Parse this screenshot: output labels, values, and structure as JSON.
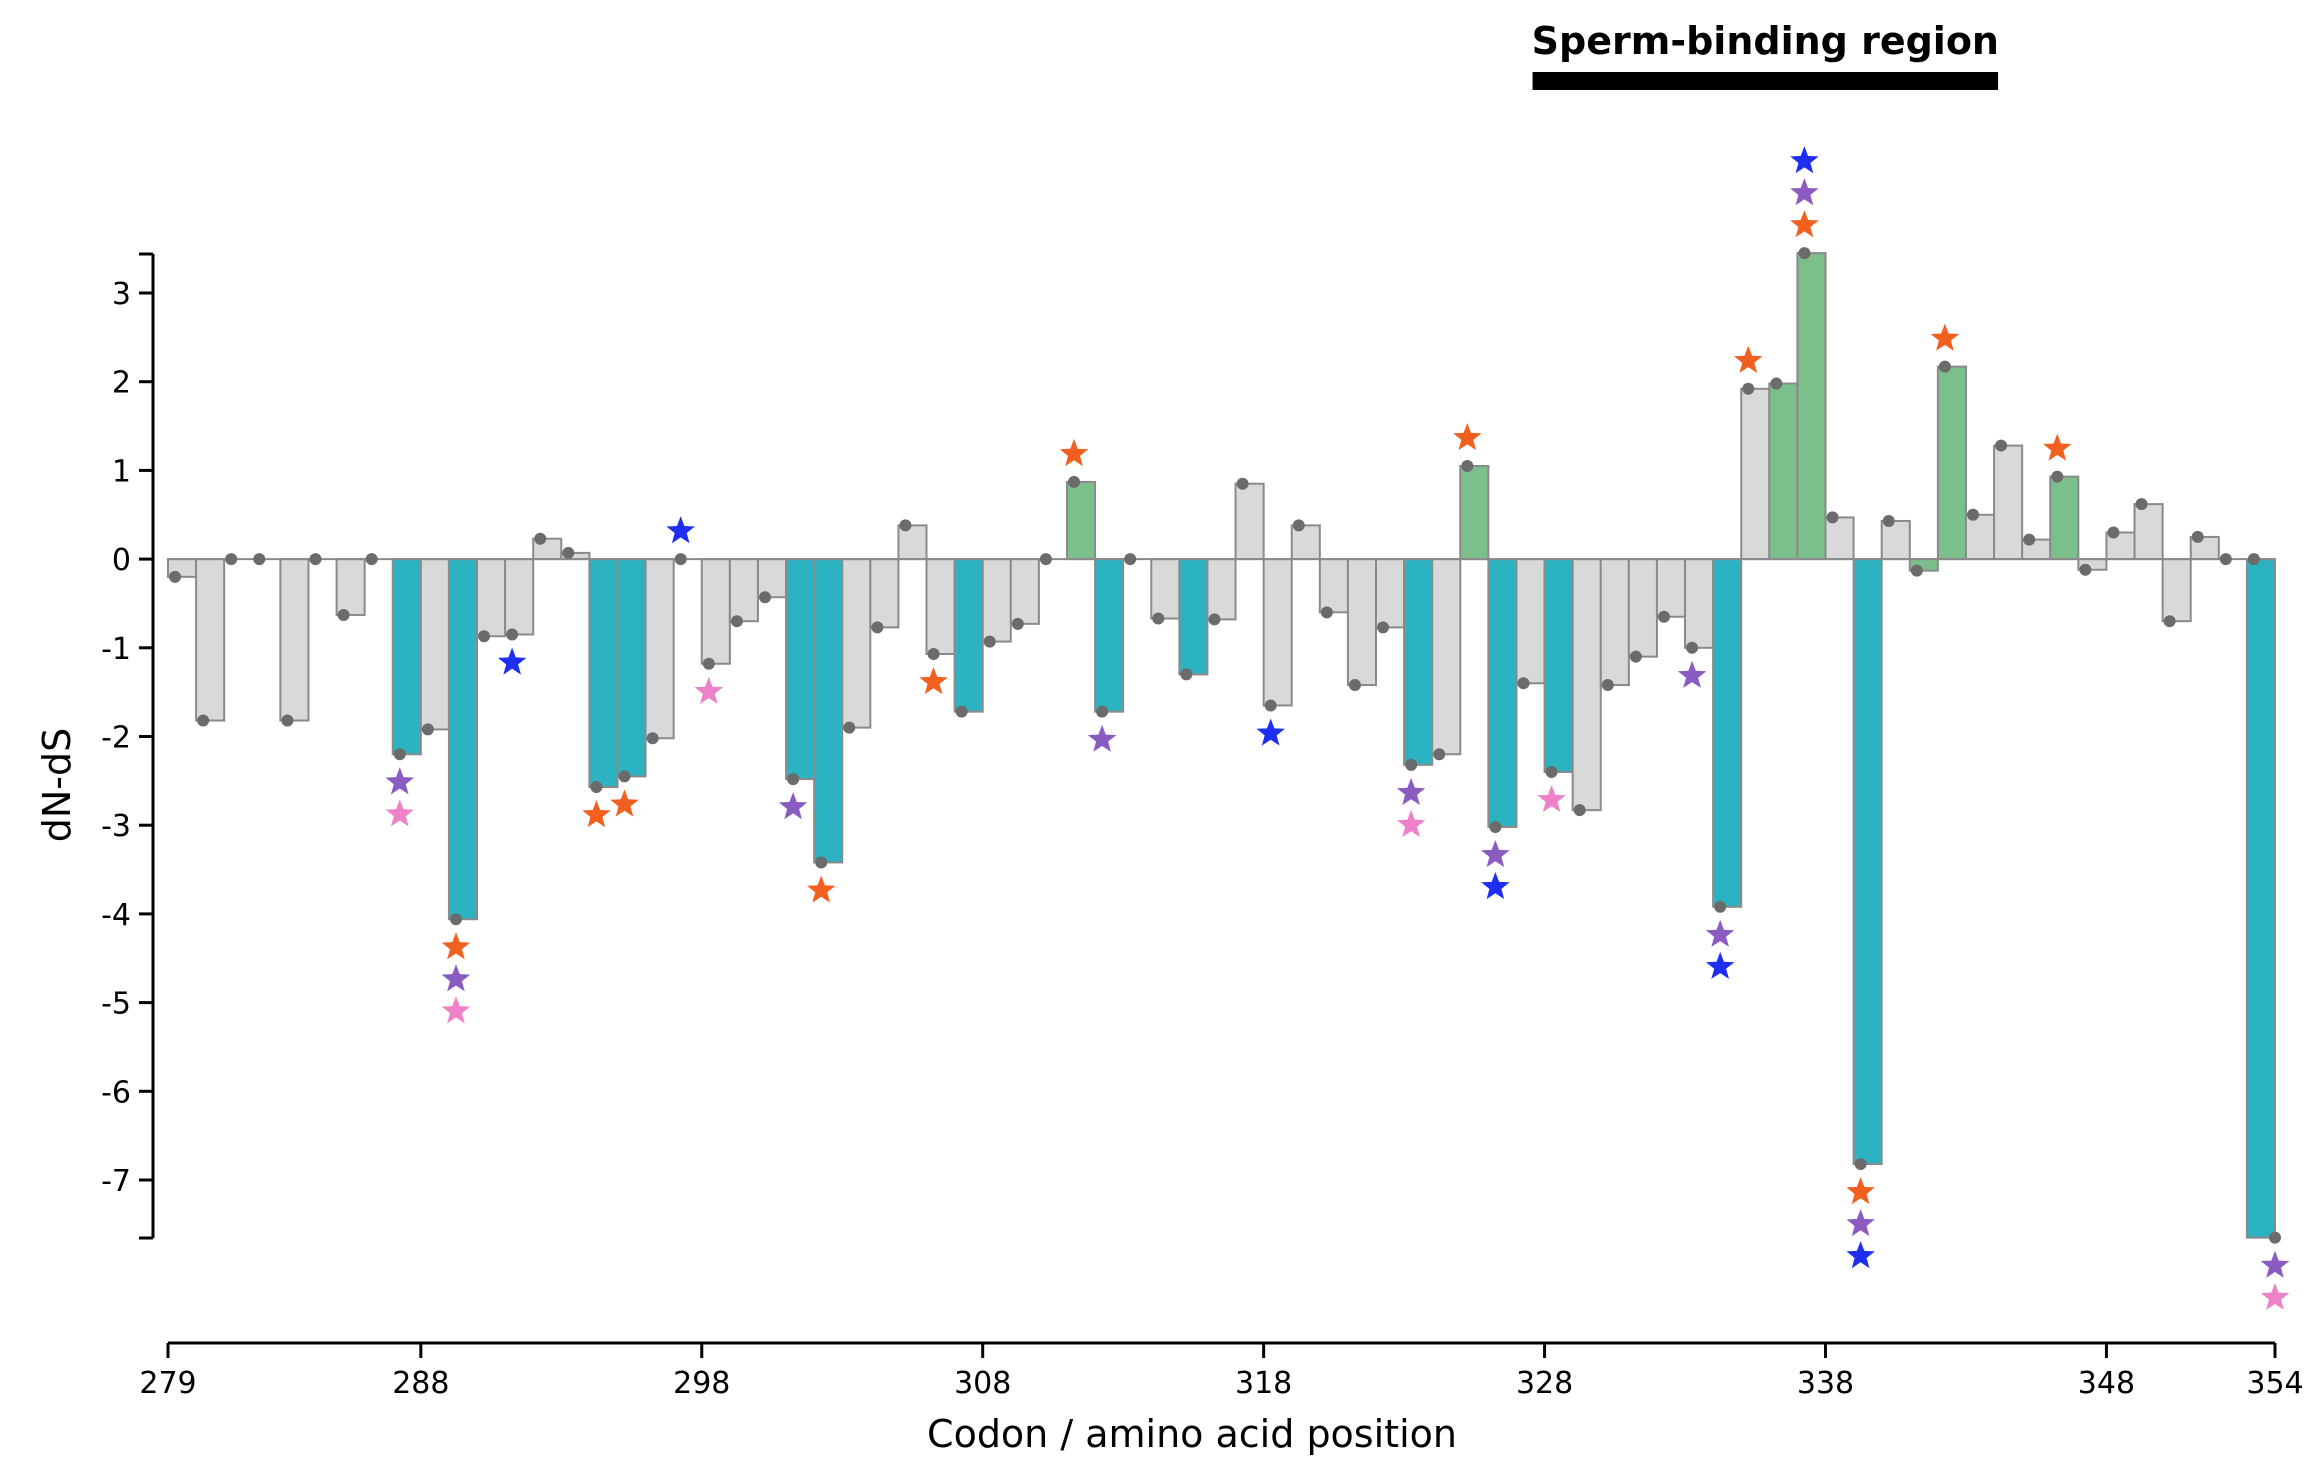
{
  "chart_data": {
    "type": "bar",
    "title": "",
    "xlabel": "Codon / amino acid position",
    "ylabel": "dN-dS",
    "xlim": [
      279,
      354
    ],
    "ylim": [
      -7.6,
      3.4
    ],
    "x_ticks": [
      279,
      288,
      298,
      308,
      318,
      328,
      338,
      348,
      354
    ],
    "y_ticks": [
      3,
      2,
      1,
      0,
      -1,
      -2,
      -3,
      -4,
      -5,
      -6,
      -7
    ],
    "grid": false,
    "region": {
      "label": "Sperm-binding region",
      "start": 328,
      "end": 344
    },
    "colors": {
      "neutral": "#d9d9d9",
      "negative": "#2cb3c2",
      "positive": "#7bbf8b",
      "edge": "#8a8a8a",
      "dot": "#6b6b6b"
    },
    "star_colors": {
      "orange": "#f2601f",
      "purple": "#8a5cc2",
      "pink": "#ee82c8",
      "blue": "#1f2ff0"
    },
    "points": [
      {
        "x": 279,
        "y": -0.2,
        "c": "n",
        "s": []
      },
      {
        "x": 280,
        "y": -1.82,
        "c": "n",
        "s": []
      },
      {
        "x": 281,
        "y": 0.0,
        "c": "n",
        "s": []
      },
      {
        "x": 282,
        "y": 0.0,
        "c": "n",
        "s": []
      },
      {
        "x": 283,
        "y": -1.82,
        "c": "n",
        "s": []
      },
      {
        "x": 284,
        "y": 0.0,
        "c": "n",
        "s": []
      },
      {
        "x": 285,
        "y": -0.63,
        "c": "n",
        "s": []
      },
      {
        "x": 286,
        "y": 0.0,
        "c": "n",
        "s": []
      },
      {
        "x": 287,
        "y": -2.2,
        "c": "neg",
        "s": [
          "purple",
          "pink"
        ]
      },
      {
        "x": 288,
        "y": -1.92,
        "c": "n",
        "s": []
      },
      {
        "x": 289,
        "y": -4.06,
        "c": "neg",
        "s": [
          "orange",
          "purple",
          "pink"
        ]
      },
      {
        "x": 290,
        "y": -0.87,
        "c": "n",
        "s": []
      },
      {
        "x": 291,
        "y": -0.85,
        "c": "n",
        "s": [
          "blue"
        ]
      },
      {
        "x": 292,
        "y": 0.23,
        "c": "n",
        "s": []
      },
      {
        "x": 293,
        "y": 0.07,
        "c": "n",
        "s": []
      },
      {
        "x": 294,
        "y": -2.57,
        "c": "neg",
        "s": [
          "orange"
        ]
      },
      {
        "x": 295,
        "y": -2.45,
        "c": "neg",
        "s": [
          "orange"
        ]
      },
      {
        "x": 296,
        "y": -2.02,
        "c": "n",
        "s": []
      },
      {
        "x": 297,
        "y": 0.0,
        "c": "n",
        "s": [
          "blue"
        ]
      },
      {
        "x": 298,
        "y": -1.18,
        "c": "n",
        "s": [
          "pink"
        ]
      },
      {
        "x": 299,
        "y": -0.7,
        "c": "n",
        "s": []
      },
      {
        "x": 300,
        "y": -0.43,
        "c": "n",
        "s": []
      },
      {
        "x": 301,
        "y": -2.48,
        "c": "neg",
        "s": [
          "purple"
        ]
      },
      {
        "x": 302,
        "y": -3.42,
        "c": "neg",
        "s": [
          "orange"
        ]
      },
      {
        "x": 303,
        "y": -1.9,
        "c": "n",
        "s": []
      },
      {
        "x": 304,
        "y": -0.77,
        "c": "n",
        "s": []
      },
      {
        "x": 305,
        "y": 0.38,
        "c": "n",
        "s": []
      },
      {
        "x": 306,
        "y": -1.07,
        "c": "n",
        "s": [
          "orange"
        ]
      },
      {
        "x": 307,
        "y": -1.72,
        "c": "neg",
        "s": []
      },
      {
        "x": 308,
        "y": -0.93,
        "c": "n",
        "s": []
      },
      {
        "x": 309,
        "y": -0.73,
        "c": "n",
        "s": []
      },
      {
        "x": 310,
        "y": 0.0,
        "c": "n",
        "s": []
      },
      {
        "x": 311,
        "y": 0.87,
        "c": "pos",
        "s": [
          "orange"
        ]
      },
      {
        "x": 312,
        "y": -1.72,
        "c": "neg",
        "s": [
          "purple"
        ]
      },
      {
        "x": 313,
        "y": 0.0,
        "c": "n",
        "s": []
      },
      {
        "x": 314,
        "y": -0.67,
        "c": "n",
        "s": []
      },
      {
        "x": 315,
        "y": -1.3,
        "c": "neg",
        "s": []
      },
      {
        "x": 316,
        "y": -0.68,
        "c": "n",
        "s": []
      },
      {
        "x": 317,
        "y": 0.85,
        "c": "n",
        "s": []
      },
      {
        "x": 318,
        "y": -1.65,
        "c": "n",
        "s": [
          "blue"
        ]
      },
      {
        "x": 319,
        "y": 0.38,
        "c": "n",
        "s": []
      },
      {
        "x": 320,
        "y": -0.6,
        "c": "n",
        "s": []
      },
      {
        "x": 321,
        "y": -1.42,
        "c": "n",
        "s": []
      },
      {
        "x": 322,
        "y": -0.77,
        "c": "n",
        "s": []
      },
      {
        "x": 323,
        "y": -2.32,
        "c": "neg",
        "s": [
          "purple",
          "pink"
        ]
      },
      {
        "x": 324,
        "y": -2.2,
        "c": "n",
        "s": []
      },
      {
        "x": 325,
        "y": 1.05,
        "c": "pos",
        "s": [
          "orange"
        ]
      },
      {
        "x": 326,
        "y": -3.02,
        "c": "neg",
        "s": [
          "purple",
          "blue"
        ]
      },
      {
        "x": 327,
        "y": -1.4,
        "c": "n",
        "s": []
      },
      {
        "x": 328,
        "y": -2.4,
        "c": "neg",
        "s": [
          "pink"
        ]
      },
      {
        "x": 329,
        "y": -2.83,
        "c": "n",
        "s": []
      },
      {
        "x": 330,
        "y": -1.42,
        "c": "n",
        "s": []
      },
      {
        "x": 331,
        "y": -1.1,
        "c": "n",
        "s": []
      },
      {
        "x": 332,
        "y": -0.65,
        "c": "n",
        "s": []
      },
      {
        "x": 333,
        "y": -1.0,
        "c": "n",
        "s": [
          "purple"
        ]
      },
      {
        "x": 334,
        "y": -3.92,
        "c": "neg",
        "s": [
          "purple",
          "blue"
        ]
      },
      {
        "x": 335,
        "y": 1.92,
        "c": "n",
        "s": [
          "orange"
        ]
      },
      {
        "x": 336,
        "y": 1.98,
        "c": "pos",
        "s": []
      },
      {
        "x": 337,
        "y": 3.45,
        "c": "pos",
        "s": [
          "orange",
          "purple",
          "blue"
        ]
      },
      {
        "x": 338,
        "y": 0.47,
        "c": "n",
        "s": []
      },
      {
        "x": 339,
        "y": -6.82,
        "c": "neg",
        "s": [
          "orange",
          "purple",
          "blue"
        ]
      },
      {
        "x": 340,
        "y": 0.43,
        "c": "n",
        "s": []
      },
      {
        "x": 341,
        "y": -0.13,
        "c": "pos",
        "s": []
      },
      {
        "x": 342,
        "y": 2.17,
        "c": "pos",
        "s": [
          "orange"
        ]
      },
      {
        "x": 343,
        "y": 0.5,
        "c": "n",
        "s": []
      },
      {
        "x": 344,
        "y": 1.28,
        "c": "n",
        "s": []
      },
      {
        "x": 345,
        "y": 0.22,
        "c": "n",
        "s": []
      },
      {
        "x": 346,
        "y": 0.93,
        "c": "pos",
        "s": [
          "orange"
        ]
      },
      {
        "x": 347,
        "y": -0.12,
        "c": "n",
        "s": []
      },
      {
        "x": 348,
        "y": 0.3,
        "c": "n",
        "s": []
      },
      {
        "x": 349,
        "y": 0.62,
        "c": "n",
        "s": []
      },
      {
        "x": 350,
        "y": -0.7,
        "c": "n",
        "s": []
      },
      {
        "x": 351,
        "y": 0.25,
        "c": "n",
        "s": []
      },
      {
        "x": 352,
        "y": 0.0,
        "c": "n",
        "s": []
      },
      {
        "x": 353,
        "y": 0.0,
        "c": "n",
        "s": []
      },
      {
        "x": 354,
        "y": -7.65,
        "c": "neg",
        "s": [
          "purple",
          "pink"
        ]
      }
    ]
  }
}
